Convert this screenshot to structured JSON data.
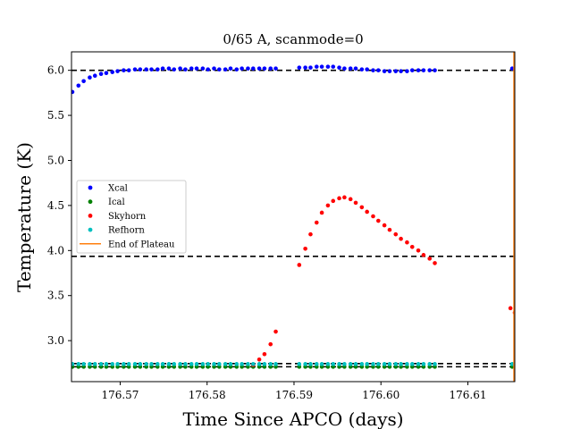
{
  "chart_data": {
    "type": "scatter",
    "title": "0/65 A, scanmode=0",
    "xlabel": "Time Since APCO (days)",
    "ylabel": "Temperature (K)",
    "xlim": [
      176.5644,
      176.6154
    ],
    "ylim": [
      2.545,
      6.205
    ],
    "xticks": [
      176.57,
      176.58,
      176.59,
      176.6,
      176.61
    ],
    "xtick_labels": [
      "176.57",
      "176.58",
      "176.59",
      "176.60",
      "176.61"
    ],
    "yticks": [
      3.0,
      3.5,
      4.0,
      4.5,
      5.0,
      5.5,
      6.0
    ],
    "ytick_labels": [
      "3.0",
      "3.5",
      "4.0",
      "4.5",
      "5.0",
      "5.5",
      "6.0"
    ],
    "grid": false,
    "legend_position": "center-left",
    "hlines": [
      {
        "y": 6.0,
        "style": "dashed",
        "color": "#000000"
      },
      {
        "y": 3.935,
        "style": "dashed",
        "color": "#000000"
      },
      {
        "y": 2.745,
        "style": "dashed",
        "color": "#000000"
      },
      {
        "y": 2.71,
        "style": "dashed",
        "color": "#000000"
      }
    ],
    "series": [
      {
        "name": "Xcal",
        "color": "#0000ff",
        "marker": "circle",
        "x": [
          176.5645,
          176.5652,
          176.5658,
          176.5665,
          176.5671,
          176.5678,
          176.5684,
          176.5691,
          176.5697,
          176.5704,
          176.571,
          176.5717,
          176.5723,
          176.573,
          176.5736,
          176.5743,
          176.5749,
          176.5756,
          176.5762,
          176.5769,
          176.5775,
          176.5782,
          176.5788,
          176.5795,
          176.5801,
          176.5808,
          176.5814,
          176.5821,
          176.5827,
          176.5834,
          176.584,
          176.5847,
          176.5853,
          176.586,
          176.5866,
          176.5873,
          176.5879,
          176.5906,
          176.5913,
          176.5919,
          176.5926,
          176.5932,
          176.5939,
          176.5945,
          176.5952,
          176.5958,
          176.5965,
          176.5971,
          176.5978,
          176.5984,
          176.5991,
          176.5997,
          176.6004,
          176.601,
          176.6017,
          176.6023,
          176.603,
          176.6036,
          176.6043,
          176.6049,
          176.6056,
          176.6062,
          176.6151
        ],
        "y": [
          5.76,
          5.83,
          5.88,
          5.92,
          5.94,
          5.96,
          5.97,
          5.98,
          5.99,
          6.0,
          6.0,
          6.01,
          6.01,
          6.01,
          6.01,
          6.01,
          6.02,
          6.02,
          6.01,
          6.02,
          6.01,
          6.02,
          6.02,
          6.02,
          6.01,
          6.02,
          6.01,
          6.01,
          6.02,
          6.01,
          6.02,
          6.02,
          6.02,
          6.02,
          6.02,
          6.02,
          6.02,
          6.03,
          6.03,
          6.03,
          6.04,
          6.04,
          6.04,
          6.04,
          6.03,
          6.02,
          6.02,
          6.02,
          6.01,
          6.01,
          6.0,
          6.0,
          5.99,
          5.99,
          5.99,
          5.99,
          5.99,
          6.0,
          6.0,
          6.0,
          6.0,
          6.0,
          6.02
        ]
      },
      {
        "name": "Ical",
        "color": "#008000",
        "marker": "circle",
        "x": [
          176.5645,
          176.5652,
          176.5658,
          176.5665,
          176.5671,
          176.5678,
          176.5684,
          176.5691,
          176.5697,
          176.5704,
          176.571,
          176.5717,
          176.5723,
          176.573,
          176.5736,
          176.5743,
          176.5749,
          176.5756,
          176.5762,
          176.5769,
          176.5775,
          176.5782,
          176.5788,
          176.5795,
          176.5801,
          176.5808,
          176.5814,
          176.5821,
          176.5827,
          176.5834,
          176.584,
          176.5847,
          176.5853,
          176.586,
          176.5866,
          176.5873,
          176.5879,
          176.5906,
          176.5913,
          176.5919,
          176.5926,
          176.5932,
          176.5939,
          176.5945,
          176.5952,
          176.5958,
          176.5965,
          176.5971,
          176.5978,
          176.5984,
          176.5991,
          176.5997,
          176.6004,
          176.601,
          176.6017,
          176.6023,
          176.603,
          176.6036,
          176.6043,
          176.6049,
          176.6056,
          176.6062,
          176.6151
        ],
        "y": [
          2.71,
          2.71,
          2.71,
          2.71,
          2.71,
          2.71,
          2.71,
          2.71,
          2.71,
          2.71,
          2.71,
          2.71,
          2.71,
          2.71,
          2.71,
          2.71,
          2.71,
          2.71,
          2.71,
          2.71,
          2.71,
          2.71,
          2.71,
          2.71,
          2.71,
          2.71,
          2.71,
          2.71,
          2.71,
          2.71,
          2.71,
          2.71,
          2.71,
          2.71,
          2.71,
          2.71,
          2.71,
          2.71,
          2.71,
          2.71,
          2.71,
          2.71,
          2.71,
          2.71,
          2.71,
          2.71,
          2.71,
          2.71,
          2.71,
          2.71,
          2.71,
          2.71,
          2.71,
          2.71,
          2.71,
          2.71,
          2.71,
          2.71,
          2.71,
          2.71,
          2.71,
          2.71,
          2.71
        ]
      },
      {
        "name": "Skyhorn",
        "color": "#ff0000",
        "marker": "circle",
        "x": [
          176.5853,
          176.586,
          176.5866,
          176.5873,
          176.5879,
          176.5906,
          176.5913,
          176.5919,
          176.5926,
          176.5932,
          176.5939,
          176.5945,
          176.5952,
          176.5958,
          176.5965,
          176.5971,
          176.5978,
          176.5984,
          176.5991,
          176.5997,
          176.6004,
          176.601,
          176.6017,
          176.6023,
          176.603,
          176.6036,
          176.6043,
          176.6049,
          176.6056,
          176.6062,
          176.6149,
          176.6154
        ],
        "y": [
          2.73,
          2.79,
          2.85,
          2.96,
          3.1,
          3.84,
          4.02,
          4.18,
          4.31,
          4.42,
          4.5,
          4.55,
          4.58,
          4.59,
          4.57,
          4.53,
          4.48,
          4.43,
          4.38,
          4.33,
          4.28,
          4.23,
          4.18,
          4.13,
          4.09,
          4.04,
          4.0,
          3.95,
          3.91,
          3.86,
          3.36,
          3.31
        ]
      },
      {
        "name": "Refhorn",
        "color": "#00bfbf",
        "marker": "circle",
        "x": [
          176.5645,
          176.5652,
          176.5658,
          176.5665,
          176.5671,
          176.5678,
          176.5684,
          176.5691,
          176.5697,
          176.5704,
          176.571,
          176.5717,
          176.5723,
          176.573,
          176.5736,
          176.5743,
          176.5749,
          176.5756,
          176.5762,
          176.5769,
          176.5775,
          176.5782,
          176.5788,
          176.5795,
          176.5801,
          176.5808,
          176.5814,
          176.5821,
          176.5827,
          176.5834,
          176.584,
          176.5847,
          176.5853,
          176.586,
          176.5866,
          176.5873,
          176.5879,
          176.5906,
          176.5913,
          176.5919,
          176.5926,
          176.5932,
          176.5939,
          176.5945,
          176.5952,
          176.5958,
          176.5965,
          176.5971,
          176.5978,
          176.5984,
          176.5991,
          176.5997,
          176.6004,
          176.601,
          176.6017,
          176.6023,
          176.603,
          176.6036,
          176.6043,
          176.6049,
          176.6056,
          176.6062,
          176.6151
        ],
        "y": [
          2.74,
          2.74,
          2.74,
          2.74,
          2.74,
          2.74,
          2.74,
          2.74,
          2.74,
          2.74,
          2.74,
          2.74,
          2.74,
          2.74,
          2.74,
          2.74,
          2.74,
          2.74,
          2.74,
          2.74,
          2.74,
          2.74,
          2.74,
          2.74,
          2.74,
          2.74,
          2.74,
          2.74,
          2.74,
          2.74,
          2.74,
          2.74,
          2.74,
          2.74,
          2.74,
          2.74,
          2.74,
          2.74,
          2.74,
          2.74,
          2.74,
          2.74,
          2.74,
          2.74,
          2.74,
          2.74,
          2.74,
          2.74,
          2.74,
          2.74,
          2.74,
          2.74,
          2.74,
          2.74,
          2.74,
          2.74,
          2.74,
          2.74,
          2.74,
          2.74,
          2.74,
          2.74,
          2.74
        ]
      }
    ],
    "vlines": [
      {
        "name": "End of Plateau",
        "x": 176.6153,
        "color": "#ff7f0e"
      }
    ],
    "legend": [
      {
        "label": "Xcal",
        "color": "#0000ff",
        "kind": "marker"
      },
      {
        "label": "Ical",
        "color": "#008000",
        "kind": "marker"
      },
      {
        "label": "Skyhorn",
        "color": "#ff0000",
        "kind": "marker"
      },
      {
        "label": "Refhorn",
        "color": "#00bfbf",
        "kind": "marker"
      },
      {
        "label": "End of Plateau",
        "color": "#ff7f0e",
        "kind": "line"
      }
    ]
  }
}
